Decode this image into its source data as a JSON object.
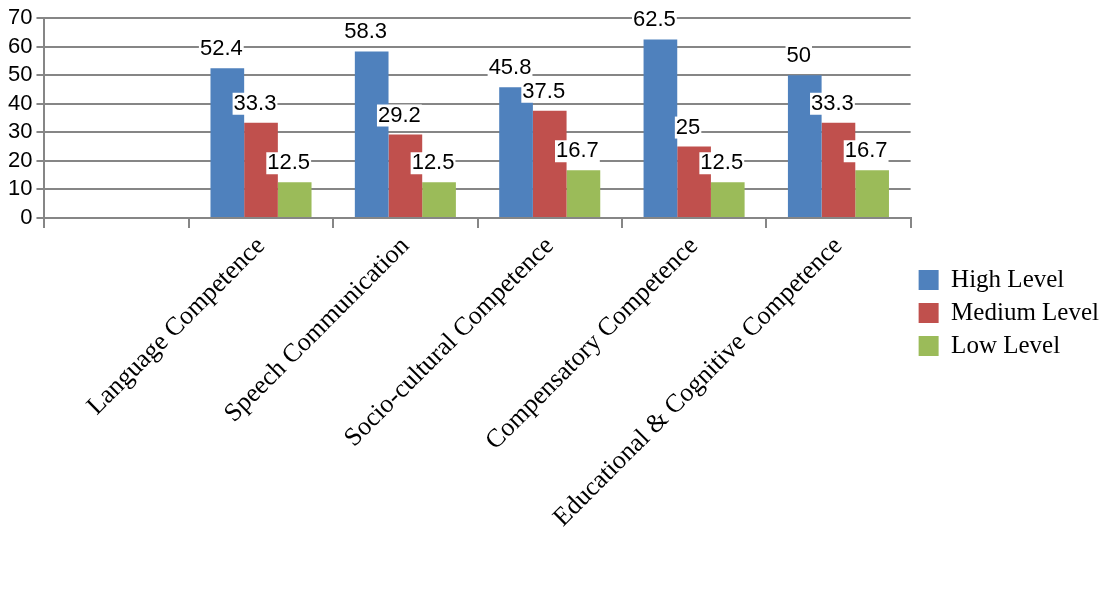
{
  "chart_data": {
    "type": "bar",
    "categories": [
      null,
      "Language Competence",
      "Speech Communication",
      "Socio-cultural Competence",
      "Compensatory Competence",
      "Educational & Cognitive Competence"
    ],
    "series": [
      {
        "name": "High Level",
        "color": "#4f81bd",
        "values": [
          null,
          52.4,
          58.3,
          45.8,
          62.5,
          50
        ]
      },
      {
        "name": "Medium Level",
        "color": "#c0504d",
        "values": [
          null,
          33.3,
          29.2,
          37.5,
          25,
          33.3
        ]
      },
      {
        "name": "Low Level",
        "color": "#9bbb59",
        "values": [
          null,
          12.5,
          12.5,
          16.7,
          12.5,
          16.7
        ]
      }
    ],
    "ylim": [
      0,
      70
    ],
    "yticks": [
      0,
      10,
      20,
      30,
      40,
      50,
      60,
      70
    ],
    "grid": "y",
    "legend": "right",
    "data_labels": true
  }
}
